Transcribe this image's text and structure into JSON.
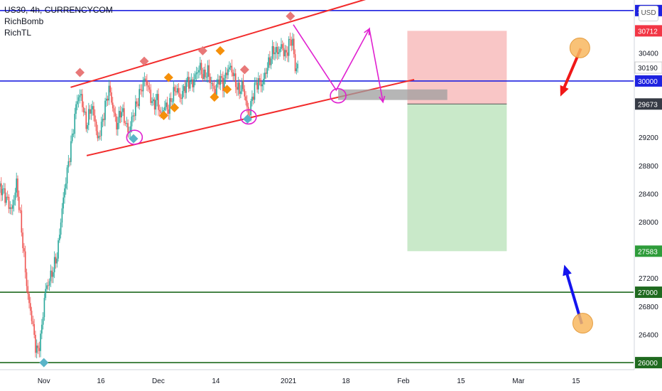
{
  "legend": {
    "symbol": "US30, 4h, CURRENCYCOM",
    "indicator1": "RichBomb",
    "indicator2": "RichTL"
  },
  "currency_badge": "USD",
  "chart_data": {
    "type": "candlestick",
    "ylim": [
      25900,
      31150
    ],
    "xlim": [
      0,
      1300
    ],
    "x_ticks": [
      {
        "x": 90,
        "label": "Nov"
      },
      {
        "x": 207,
        "label": "16"
      },
      {
        "x": 325,
        "label": "Dec"
      },
      {
        "x": 443,
        "label": "14"
      },
      {
        "x": 592,
        "label": "2021"
      },
      {
        "x": 710,
        "label": "18"
      },
      {
        "x": 828,
        "label": "Feb"
      },
      {
        "x": 946,
        "label": "15"
      },
      {
        "x": 1064,
        "label": "Mar"
      },
      {
        "x": 1182,
        "label": "15"
      }
    ],
    "y_ticks": [
      26400,
      26800,
      27200,
      28000,
      28400,
      28800,
      29200,
      30400
    ],
    "price_badges": [
      {
        "value": 31000,
        "label": "31000",
        "bg": "#1e22e0",
        "color": "#ffffff"
      },
      {
        "value": 30712,
        "label": "30712",
        "bg": "#f23645",
        "color": "#ffffff"
      },
      {
        "value": 30190,
        "label": "30190",
        "bg": "#ffffff",
        "color": "#131722"
      },
      {
        "value": 30000,
        "label": "30000",
        "bg": "#1e22e0",
        "color": "#ffffff"
      },
      {
        "value": 29673,
        "label": "29673",
        "bg": "#363a45",
        "color": "#ffffff"
      },
      {
        "value": 27583,
        "label": "27583",
        "bg": "#2e9c3a",
        "color": "#ffffff"
      },
      {
        "value": 27000,
        "label": "27000",
        "bg": "#1f6a1f",
        "color": "#ffffff"
      },
      {
        "value": 26000,
        "label": "26000",
        "bg": "#1f6a1f",
        "color": "#ffffff"
      }
    ],
    "horizontal_lines": [
      {
        "value": 31000,
        "color": "#1e22e0"
      },
      {
        "value": 30000,
        "color": "#1e22e0"
      },
      {
        "value": 27000,
        "color": "#1f6a1f"
      },
      {
        "value": 26000,
        "color": "#1f6a1f"
      }
    ],
    "channel_lines": [
      {
        "x1": 145,
        "y1": 29910,
        "x2": 770,
        "y2": 31200,
        "color": "#f22b2b"
      },
      {
        "x1": 178,
        "y1": 28940,
        "x2": 850,
        "y2": 30020,
        "color": "#f22b2b"
      }
    ],
    "candle_anchors": [
      [
        0,
        28500
      ],
      [
        12,
        28350
      ],
      [
        24,
        28150
      ],
      [
        34,
        28550
      ],
      [
        44,
        27900
      ],
      [
        52,
        27300
      ],
      [
        58,
        26900
      ],
      [
        66,
        26600
      ],
      [
        72,
        26250
      ],
      [
        78,
        26150
      ],
      [
        86,
        26500
      ],
      [
        92,
        27000
      ],
      [
        100,
        27150
      ],
      [
        108,
        27300
      ],
      [
        118,
        27550
      ],
      [
        126,
        28100
      ],
      [
        134,
        28550
      ],
      [
        142,
        28900
      ],
      [
        150,
        29300
      ],
      [
        158,
        29750
      ],
      [
        166,
        29800
      ],
      [
        172,
        29550
      ],
      [
        178,
        29350
      ],
      [
        186,
        29650
      ],
      [
        194,
        29500
      ],
      [
        200,
        29150
      ],
      [
        208,
        29350
      ],
      [
        216,
        29650
      ],
      [
        224,
        29900
      ],
      [
        232,
        29600
      ],
      [
        240,
        29350
      ],
      [
        248,
        29600
      ],
      [
        256,
        29450
      ],
      [
        264,
        29250
      ],
      [
        272,
        29500
      ],
      [
        282,
        29700
      ],
      [
        290,
        29900
      ],
      [
        298,
        30050
      ],
      [
        306,
        29850
      ],
      [
        314,
        29650
      ],
      [
        322,
        29750
      ],
      [
        330,
        29500
      ],
      [
        338,
        29650
      ],
      [
        346,
        29600
      ],
      [
        354,
        29800
      ],
      [
        362,
        29900
      ],
      [
        370,
        29750
      ],
      [
        378,
        29900
      ],
      [
        386,
        30000
      ],
      [
        394,
        29950
      ],
      [
        402,
        30100
      ],
      [
        410,
        30200
      ],
      [
        418,
        30050
      ],
      [
        426,
        30150
      ],
      [
        434,
        29950
      ],
      [
        442,
        29850
      ],
      [
        450,
        30050
      ],
      [
        458,
        29950
      ],
      [
        466,
        30150
      ],
      [
        474,
        30200
      ],
      [
        482,
        30000
      ],
      [
        490,
        29850
      ],
      [
        498,
        29950
      ],
      [
        506,
        29650
      ],
      [
        510,
        29500
      ],
      [
        516,
        29700
      ],
      [
        522,
        29900
      ],
      [
        530,
        30000
      ],
      [
        538,
        29950
      ],
      [
        546,
        30150
      ],
      [
        554,
        30300
      ],
      [
        562,
        30450
      ],
      [
        570,
        30400
      ],
      [
        578,
        30500
      ],
      [
        586,
        30350
      ],
      [
        594,
        30550
      ],
      [
        600,
        30600
      ],
      [
        606,
        30150
      ],
      [
        612,
        30250
      ]
    ],
    "diamonds": [
      {
        "x": 164,
        "value": 30120,
        "color": "#e87878"
      },
      {
        "x": 296,
        "value": 30280,
        "color": "#e87878"
      },
      {
        "x": 416,
        "value": 30430,
        "color": "#e87878"
      },
      {
        "x": 502,
        "value": 30160,
        "color": "#e87878"
      },
      {
        "x": 596,
        "value": 30920,
        "color": "#e87878"
      },
      {
        "x": 346,
        "value": 30050,
        "color": "#f5900a"
      },
      {
        "x": 452,
        "value": 30430,
        "color": "#f5900a"
      },
      {
        "x": 336,
        "value": 29510,
        "color": "#f5900a"
      },
      {
        "x": 358,
        "value": 29620,
        "color": "#f5900a"
      },
      {
        "x": 440,
        "value": 29770,
        "color": "#f5900a"
      },
      {
        "x": 466,
        "value": 29880,
        "color": "#f5900a"
      },
      {
        "x": 274,
        "value": 29180,
        "color": "#5ab4c8"
      },
      {
        "x": 508,
        "value": 29460,
        "color": "#5ab4c8"
      },
      {
        "x": 90,
        "value": 26000,
        "color": "#5ab4c8"
      }
    ],
    "circles": [
      {
        "x": 276,
        "value": 29200
      },
      {
        "x": 510,
        "value": 29490
      },
      {
        "x": 694,
        "value": 29790
      }
    ],
    "projection_path": [
      [
        602,
        30800
      ],
      [
        690,
        29870
      ],
      [
        758,
        30740
      ],
      [
        786,
        29700
      ]
    ],
    "position_box": {
      "x1": 836,
      "x2": 1040,
      "top": 30712,
      "entry": 29673,
      "bottom": 27583
    },
    "gray_bar": {
      "x1": 694,
      "x2": 918,
      "top": 29880,
      "bottom": 29730
    },
    "arrows": [
      {
        "x1": 1192,
        "y1": 30460,
        "x2": 1150,
        "y2": 29780,
        "color": "#f01818"
      },
      {
        "x1": 1194,
        "y1": 26550,
        "x2": 1158,
        "y2": 27390,
        "color": "#1414ee"
      }
    ],
    "orange_circles": [
      {
        "x": 1190,
        "value": 30470
      },
      {
        "x": 1196,
        "value": 26560
      }
    ]
  }
}
